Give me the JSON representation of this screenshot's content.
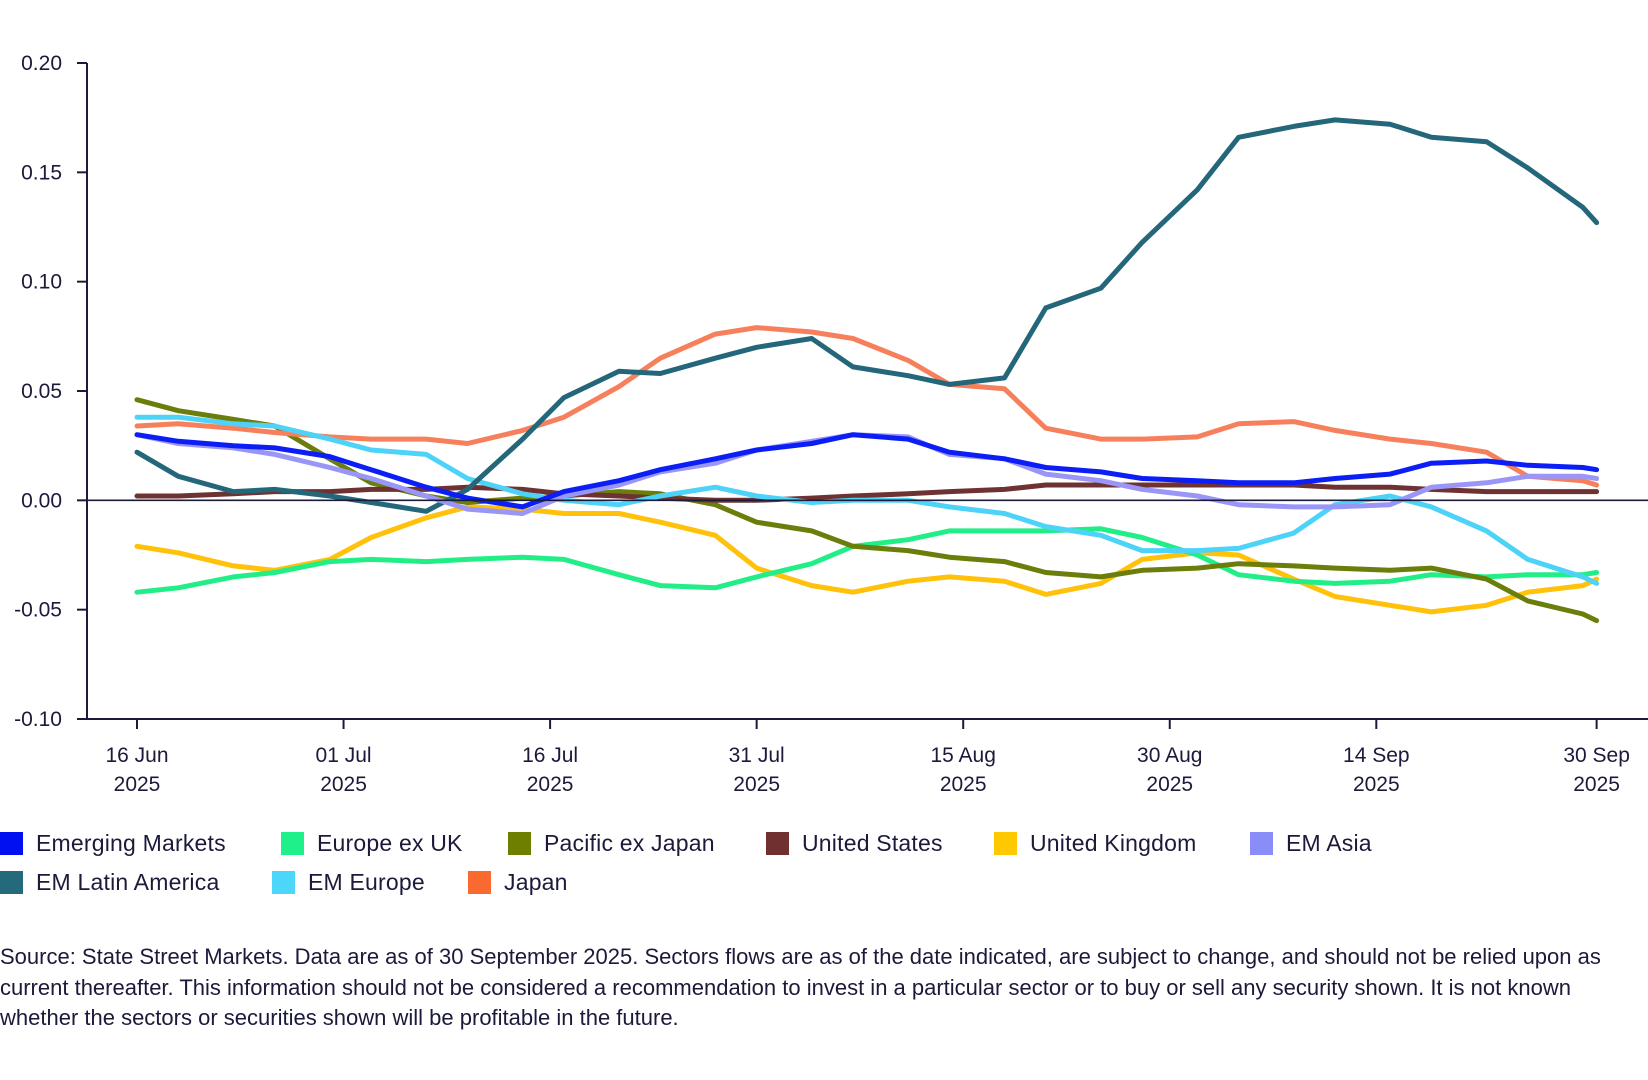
{
  "chart_data": {
    "type": "line",
    "title": "",
    "xlabel": "",
    "ylabel": "",
    "ylim": [
      -0.1,
      0.2
    ],
    "yticks": [
      "0.20",
      "0.15",
      "0.10",
      "0.05",
      "0.00",
      "-0.05",
      "-0.10"
    ],
    "ytick_values": [
      0.2,
      0.15,
      0.1,
      0.05,
      0.0,
      -0.05,
      -0.1
    ],
    "xlim": [
      "2025-06-16",
      "2025-09-30"
    ],
    "xticks": [
      {
        "date": "2025-06-16",
        "line1": "16 Jun",
        "line2": "2025"
      },
      {
        "date": "2025-07-01",
        "line1": "01 Jul",
        "line2": "2025"
      },
      {
        "date": "2025-07-16",
        "line1": "16 Jul",
        "line2": "2025"
      },
      {
        "date": "2025-07-31",
        "line1": "31 Jul",
        "line2": "2025"
      },
      {
        "date": "2025-08-15",
        "line1": "15 Aug",
        "line2": "2025"
      },
      {
        "date": "2025-08-30",
        "line1": "30 Aug",
        "line2": "2025"
      },
      {
        "date": "2025-09-14",
        "line1": "14 Sep",
        "line2": "2025"
      },
      {
        "date": "2025-09-30",
        "line1": "30 Sep",
        "line2": "2025"
      }
    ],
    "grid": false,
    "legend_placement": "bottom",
    "x": [
      "2025-06-16",
      "2025-06-19",
      "2025-06-23",
      "2025-06-26",
      "2025-06-30",
      "2025-07-03",
      "2025-07-07",
      "2025-07-10",
      "2025-07-14",
      "2025-07-17",
      "2025-07-21",
      "2025-07-24",
      "2025-07-28",
      "2025-07-31",
      "2025-08-04",
      "2025-08-07",
      "2025-08-11",
      "2025-08-14",
      "2025-08-18",
      "2025-08-21",
      "2025-08-25",
      "2025-08-28",
      "2025-09-01",
      "2025-09-04",
      "2025-09-08",
      "2025-09-11",
      "2025-09-15",
      "2025-09-18",
      "2025-09-22",
      "2025-09-25",
      "2025-09-29",
      "2025-09-30"
    ],
    "series": [
      {
        "name": "Emerging Markets",
        "color": "#0a1ef5",
        "legend_color": "#0010f0",
        "values": [
          0.03,
          0.027,
          0.025,
          0.024,
          0.02,
          0.014,
          0.006,
          0.001,
          -0.003,
          0.004,
          0.009,
          0.014,
          0.019,
          0.023,
          0.026,
          0.03,
          0.028,
          0.022,
          0.019,
          0.015,
          0.013,
          0.01,
          0.009,
          0.008,
          0.008,
          0.01,
          0.012,
          0.017,
          0.018,
          0.016,
          0.015,
          0.014
        ]
      },
      {
        "name": "Europe ex UK",
        "color": "#22ee88",
        "legend_color": "#20f08a",
        "values": [
          -0.042,
          -0.04,
          -0.035,
          -0.033,
          -0.028,
          -0.027,
          -0.028,
          -0.027,
          -0.026,
          -0.027,
          -0.034,
          -0.039,
          -0.04,
          -0.035,
          -0.029,
          -0.021,
          -0.018,
          -0.014,
          -0.014,
          -0.014,
          -0.013,
          -0.017,
          -0.025,
          -0.034,
          -0.037,
          -0.038,
          -0.037,
          -0.034,
          -0.035,
          -0.034,
          -0.034,
          -0.033
        ]
      },
      {
        "name": "Pacific ex Japan",
        "color": "#6b7d0a",
        "legend_color": "#6e7f00",
        "values": [
          0.046,
          0.041,
          0.037,
          0.034,
          0.019,
          0.008,
          0.002,
          -0.001,
          0.001,
          0.002,
          0.004,
          0.003,
          -0.002,
          -0.01,
          -0.014,
          -0.021,
          -0.023,
          -0.026,
          -0.028,
          -0.033,
          -0.035,
          -0.032,
          -0.031,
          -0.029,
          -0.03,
          -0.031,
          -0.032,
          -0.031,
          -0.036,
          -0.046,
          -0.052,
          -0.055
        ]
      },
      {
        "name": "United States",
        "color": "#6e3232",
        "legend_color": "#703030",
        "values": [
          0.002,
          0.002,
          0.003,
          0.004,
          0.004,
          0.005,
          0.005,
          0.006,
          0.005,
          0.003,
          0.002,
          0.001,
          0.0,
          0.0,
          0.001,
          0.002,
          0.003,
          0.004,
          0.005,
          0.007,
          0.007,
          0.007,
          0.007,
          0.007,
          0.007,
          0.006,
          0.006,
          0.005,
          0.004,
          0.004,
          0.004,
          0.004
        ]
      },
      {
        "name": "United Kingdom",
        "color": "#ffc10a",
        "legend_color": "#ffc800",
        "values": [
          -0.021,
          -0.024,
          -0.03,
          -0.032,
          -0.027,
          -0.017,
          -0.008,
          -0.003,
          -0.004,
          -0.006,
          -0.006,
          -0.01,
          -0.016,
          -0.031,
          -0.039,
          -0.042,
          -0.037,
          -0.035,
          -0.037,
          -0.043,
          -0.038,
          -0.027,
          -0.024,
          -0.025,
          -0.036,
          -0.044,
          -0.048,
          -0.051,
          -0.048,
          -0.042,
          -0.039,
          -0.036
        ]
      },
      {
        "name": "EM Asia",
        "color": "#9a96f8",
        "legend_color": "#8a8cf8",
        "values": [
          0.03,
          0.026,
          0.024,
          0.021,
          0.015,
          0.01,
          0.002,
          -0.004,
          -0.006,
          0.002,
          0.007,
          0.013,
          0.017,
          0.023,
          0.027,
          0.03,
          0.029,
          0.021,
          0.019,
          0.012,
          0.009,
          0.005,
          0.002,
          -0.002,
          -0.003,
          -0.003,
          -0.002,
          0.006,
          0.008,
          0.011,
          0.011,
          0.01
        ]
      },
      {
        "name": "EM Latin America",
        "color": "#25677a",
        "legend_color": "#256a7c",
        "values": [
          0.022,
          0.011,
          0.004,
          0.005,
          0.002,
          -0.001,
          -0.005,
          0.005,
          0.028,
          0.047,
          0.059,
          0.058,
          0.065,
          0.07,
          0.074,
          0.061,
          0.057,
          0.053,
          0.056,
          0.088,
          0.097,
          0.118,
          0.142,
          0.166,
          0.171,
          0.174,
          0.172,
          0.166,
          0.164,
          0.152,
          0.134,
          0.127
        ]
      },
      {
        "name": "EM Europe",
        "color": "#4dd3f8",
        "legend_color": "#4cd6fa",
        "values": [
          0.038,
          0.038,
          0.035,
          0.034,
          0.028,
          0.023,
          0.021,
          0.01,
          0.003,
          0.0,
          -0.002,
          0.002,
          0.006,
          0.002,
          -0.001,
          0.0,
          0.0,
          -0.003,
          -0.006,
          -0.012,
          -0.016,
          -0.023,
          -0.023,
          -0.022,
          -0.015,
          -0.002,
          0.002,
          -0.003,
          -0.014,
          -0.027,
          -0.035,
          -0.038
        ]
      },
      {
        "name": "Japan",
        "color": "#f7805c",
        "legend_color": "#fa6a30",
        "values": [
          0.034,
          0.035,
          0.033,
          0.031,
          0.029,
          0.028,
          0.028,
          0.026,
          0.032,
          0.038,
          0.052,
          0.065,
          0.076,
          0.079,
          0.077,
          0.074,
          0.064,
          0.053,
          0.051,
          0.033,
          0.028,
          0.028,
          0.029,
          0.035,
          0.036,
          0.032,
          0.028,
          0.026,
          0.022,
          0.011,
          0.009,
          0.007
        ]
      }
    ],
    "legend_rows": [
      [
        0,
        1,
        2,
        3,
        4,
        5
      ],
      [
        6,
        7,
        8
      ]
    ]
  },
  "footnote": "Source: State Street Markets. Data are as of 30 September  2025. Sectors flows are as of the date indicated, are subject to change, and should not be relied upon as current thereafter. This information should not be considered a recommendation to invest in a particular sector or to buy or sell any security shown. It is not known whether the sectors or securities shown will be profitable in the future."
}
